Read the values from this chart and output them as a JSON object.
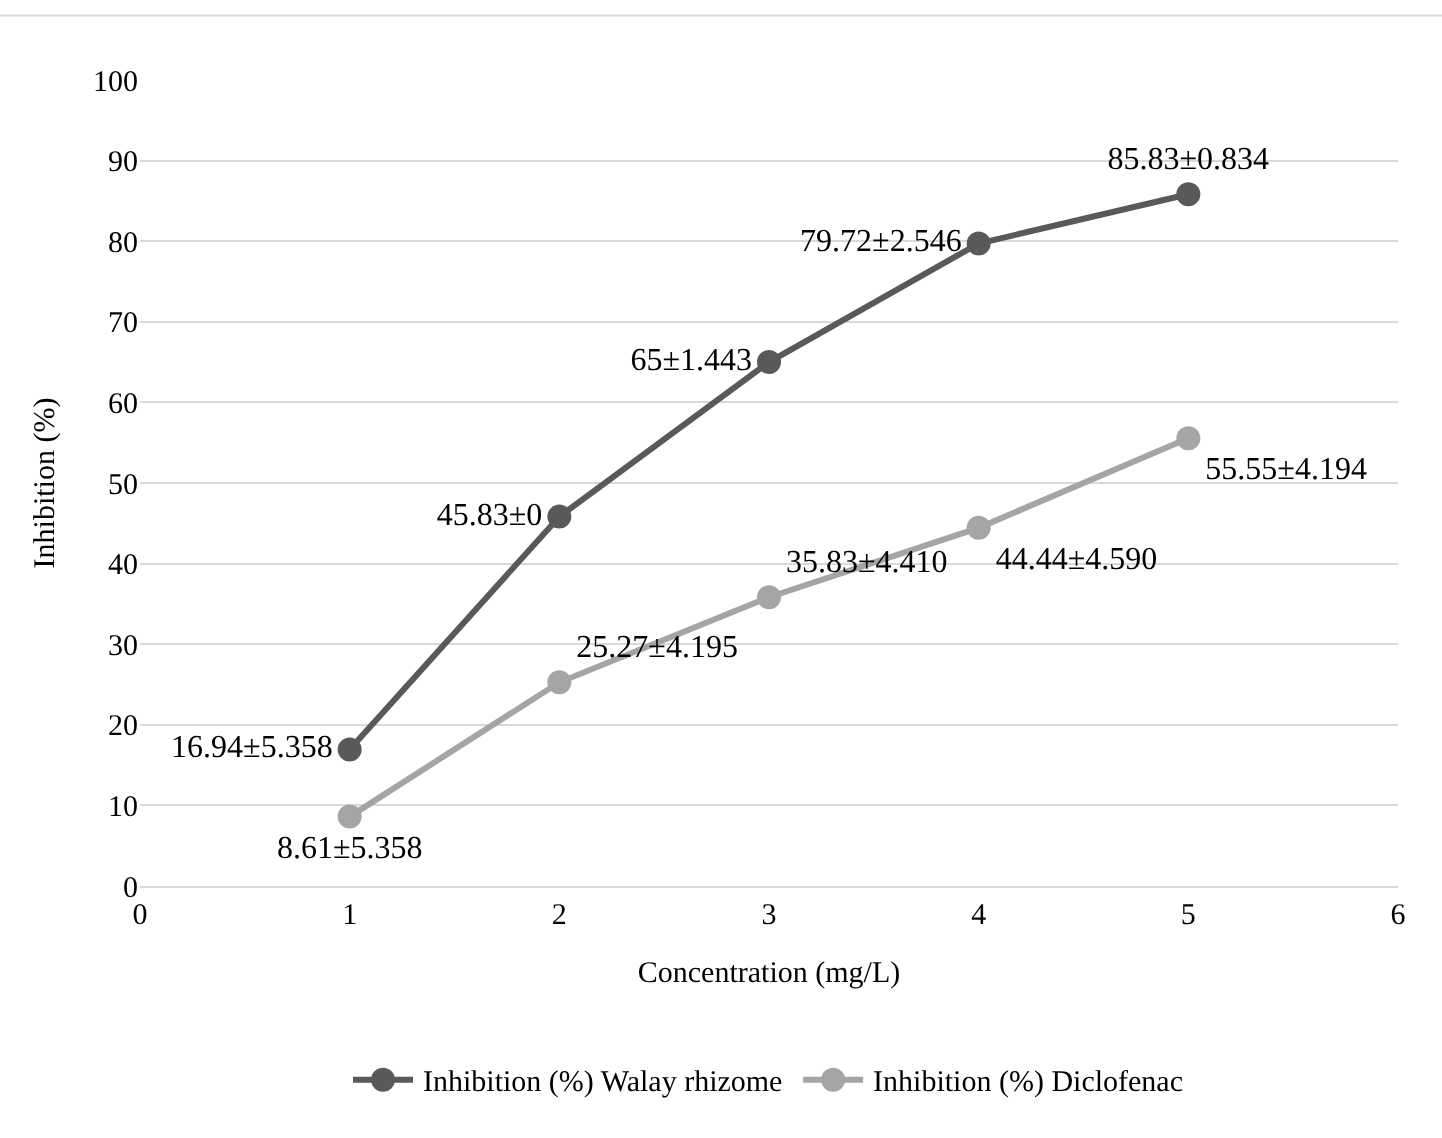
{
  "chart_data": {
    "type": "line",
    "xlabel": "Concentration (mg/L)",
    "ylabel": "Inhibition (%)",
    "x": [
      1,
      2,
      3,
      4,
      5
    ],
    "series": [
      {
        "name": "Inhibition (%) Walay rhizome",
        "color": "#595959",
        "values": [
          16.94,
          45.83,
          65,
          79.72,
          85.83
        ],
        "value_labels": [
          "16.94±5.358",
          "45.83±0",
          "65±1.443",
          "79.72±2.546",
          "85.83±0.834"
        ]
      },
      {
        "name": "Inhibition (%) Diclofenac",
        "color": "#a5a5a5",
        "values": [
          8.61,
          25.27,
          35.83,
          44.44,
          55.55
        ],
        "value_labels": [
          "8.61±5.358",
          "25.27±4.195",
          "35.83±4.410",
          "44.44±4.590",
          "55.55±4.194"
        ]
      }
    ],
    "xlim": [
      0,
      6
    ],
    "xticks": [
      0,
      1,
      2,
      3,
      4,
      5,
      6
    ],
    "ylim": [
      0,
      100
    ],
    "yticks": [
      0,
      10,
      20,
      30,
      40,
      50,
      60,
      70,
      80,
      90,
      100
    ],
    "grid": "y",
    "legend": "bottom",
    "marker": "circle",
    "line_style": "solid"
  }
}
